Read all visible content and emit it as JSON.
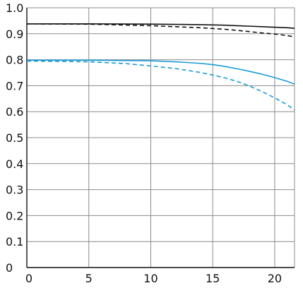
{
  "chart_data": {
    "type": "line",
    "title": "",
    "xlabel": "",
    "ylabel": "",
    "xlim": [
      0,
      21.6
    ],
    "ylim": [
      0,
      1.0
    ],
    "grid": true,
    "x_ticks": [
      0,
      5,
      10,
      15,
      20
    ],
    "x_tick_labels": [
      "0",
      "5",
      "10",
      "15",
      "20"
    ],
    "y_ticks": [
      0,
      0.1,
      0.2,
      0.3,
      0.4,
      0.5,
      0.6,
      0.7,
      0.8,
      0.9,
      1.0
    ],
    "y_tick_labels": [
      "0",
      "0.1",
      "0.2",
      "0.3",
      "0.4",
      "0.5",
      "0.6",
      "0.7",
      "0.8",
      "0.9",
      "1.0"
    ],
    "series": [
      {
        "color": "#111111",
        "dash": "solid",
        "x": [
          0,
          5,
          10,
          12,
          14,
          15,
          16,
          17,
          18,
          19,
          20,
          21,
          21.6
        ],
        "y": [
          0.938,
          0.938,
          0.937,
          0.936,
          0.935,
          0.934,
          0.933,
          0.931,
          0.929,
          0.927,
          0.925,
          0.923,
          0.921
        ]
      },
      {
        "color": "#111111",
        "dash": "dashed",
        "x": [
          0,
          5,
          10,
          12,
          14,
          15,
          16,
          17,
          18,
          19,
          20,
          21,
          21.6
        ],
        "y": [
          0.938,
          0.937,
          0.931,
          0.927,
          0.923,
          0.92,
          0.917,
          0.913,
          0.908,
          0.903,
          0.899,
          0.893,
          0.888
        ]
      },
      {
        "color": "#1a9bd7",
        "dash": "solid",
        "x": [
          0,
          5,
          10,
          12,
          14,
          15,
          16,
          17,
          18,
          19,
          20,
          21,
          21.6
        ],
        "y": [
          0.798,
          0.798,
          0.796,
          0.792,
          0.786,
          0.781,
          0.774,
          0.765,
          0.755,
          0.744,
          0.731,
          0.717,
          0.706
        ]
      },
      {
        "color": "#1a9bd7",
        "dash": "dashed",
        "x": [
          0,
          5,
          8,
          10,
          12,
          14,
          15,
          16,
          17,
          18,
          19,
          20,
          21,
          21.6
        ],
        "y": [
          0.795,
          0.792,
          0.785,
          0.776,
          0.766,
          0.751,
          0.741,
          0.73,
          0.716,
          0.698,
          0.677,
          0.653,
          0.627,
          0.606
        ]
      }
    ]
  }
}
